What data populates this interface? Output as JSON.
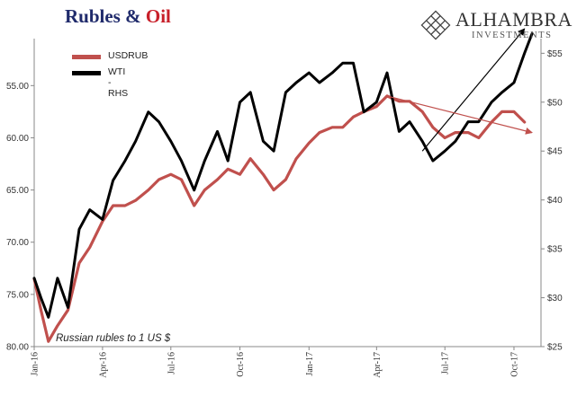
{
  "title": {
    "part1": "Rubles &",
    "part2": "Oil",
    "color1": "#1f2a6b",
    "color2": "#c8202a"
  },
  "logo": {
    "name": "ALHAMBRA",
    "sub": "INVESTMENTS",
    "icon": "diamond-lattice-icon"
  },
  "note": "Russian rubles to 1 US $",
  "chart_data": {
    "type": "line",
    "x_ticks": [
      "Jan-16",
      "Apr-16",
      "Jul-16",
      "Oct-16",
      "Jan-17",
      "Apr-17",
      "Jul-17",
      "Oct-17"
    ],
    "left_axis": {
      "ticks": [
        "55.00",
        "60.00",
        "65.00",
        "70.00",
        "75.00",
        "80.00"
      ],
      "min": 50.5,
      "max": 80,
      "inverted": true
    },
    "right_axis": {
      "ticks": [
        "$25",
        "$30",
        "$35",
        "$40",
        "$45",
        "$50",
        "$55"
      ],
      "min": 25,
      "max": 56.5
    },
    "legend": [
      "USDRUB",
      "WTI - RHS"
    ],
    "series": [
      {
        "name": "USDRUB",
        "axis": "left",
        "color": "#c0504d",
        "x": [
          "2016-01-01",
          "2016-01-10",
          "2016-01-20",
          "2016-02-01",
          "2016-02-15",
          "2016-03-01",
          "2016-03-15",
          "2016-04-01",
          "2016-04-15",
          "2016-05-01",
          "2016-05-15",
          "2016-06-01",
          "2016-06-15",
          "2016-07-01",
          "2016-07-15",
          "2016-08-01",
          "2016-08-15",
          "2016-09-01",
          "2016-09-15",
          "2016-10-01",
          "2016-10-15",
          "2016-11-01",
          "2016-11-15",
          "2016-12-01",
          "2016-12-15",
          "2017-01-01",
          "2017-01-15",
          "2017-02-01",
          "2017-02-15",
          "2017-03-01",
          "2017-03-15",
          "2017-04-01",
          "2017-04-15",
          "2017-05-01",
          "2017-05-15",
          "2017-06-01",
          "2017-06-15",
          "2017-07-01",
          "2017-07-15",
          "2017-08-01",
          "2017-08-15",
          "2017-09-01",
          "2017-09-15",
          "2017-10-01",
          "2017-10-15"
        ],
        "values": [
          73.5,
          76.5,
          79.5,
          78,
          76.5,
          72,
          70.5,
          68,
          66.5,
          66.5,
          66,
          65,
          64,
          63.5,
          64,
          66.5,
          65,
          64,
          63,
          63.5,
          62,
          63.5,
          65,
          64,
          62,
          60.5,
          59.5,
          59,
          59,
          58,
          57.5,
          57,
          56,
          56.5,
          56.5,
          57.5,
          59,
          60,
          59.5,
          59.5,
          60,
          58.5,
          57.5,
          57.5,
          58.5
        ]
      },
      {
        "name": "WTI - RHS",
        "axis": "right",
        "color": "#000000",
        "x": [
          "2016-01-01",
          "2016-01-10",
          "2016-01-20",
          "2016-02-01",
          "2016-02-15",
          "2016-03-01",
          "2016-03-15",
          "2016-04-01",
          "2016-04-15",
          "2016-05-01",
          "2016-05-15",
          "2016-06-01",
          "2016-06-15",
          "2016-07-01",
          "2016-07-15",
          "2016-08-01",
          "2016-08-15",
          "2016-09-01",
          "2016-09-15",
          "2016-10-01",
          "2016-10-15",
          "2016-11-01",
          "2016-11-15",
          "2016-12-01",
          "2016-12-15",
          "2017-01-01",
          "2017-01-15",
          "2017-02-01",
          "2017-02-15",
          "2017-03-01",
          "2017-03-15",
          "2017-04-01",
          "2017-04-15",
          "2017-05-01",
          "2017-05-15",
          "2017-06-01",
          "2017-06-15",
          "2017-07-01",
          "2017-07-15",
          "2017-08-01",
          "2017-08-15",
          "2017-09-01",
          "2017-09-15",
          "2017-10-01",
          "2017-10-15",
          "2017-10-25"
        ],
        "values": [
          32,
          30,
          28,
          32,
          29,
          37,
          39,
          38,
          42,
          44,
          46,
          49,
          48,
          46,
          44,
          41,
          44,
          47,
          44,
          50,
          51,
          46,
          45,
          51,
          52,
          53,
          52,
          53,
          54,
          54,
          49,
          50,
          53,
          47,
          48,
          46,
          44,
          45,
          46,
          48,
          48,
          50,
          51,
          52,
          55,
          57
        ]
      }
    ],
    "trend_arrows": [
      {
        "series": "WTI - RHS",
        "from": [
          "2017-06-01",
          45
        ],
        "to": [
          "2017-10-15",
          57.5
        ],
        "color": "#000000"
      },
      {
        "series": "USDRUB",
        "from": [
          "2017-04-15",
          56
        ],
        "to": [
          "2017-10-25",
          59.5
        ],
        "color": "#c0504d"
      }
    ]
  }
}
